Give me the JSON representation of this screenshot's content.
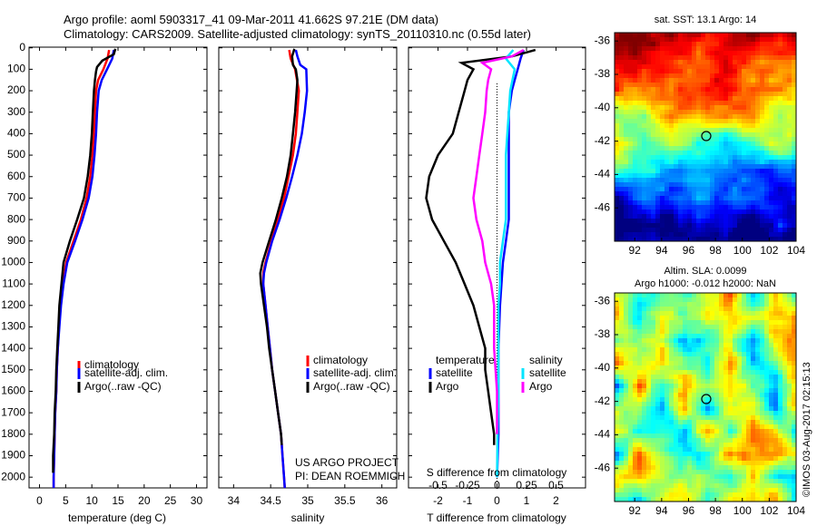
{
  "title": {
    "line1": "Argo profile: aoml 5903317_41 09-Mar-2011 41.662S 97.21E (DM data)",
    "line2": "Climatology: CARS2009. Satellite-adjusted climatology: synTS_20110310.nc (0.55d later)"
  },
  "colors": {
    "climatology": "#ff0000",
    "satellite_adj": "#0000ff",
    "argo": "#000000",
    "sat_T": "#0000ff",
    "argo_T": "#000000",
    "sat_S": "#00e5ff",
    "argo_S": "#ff00ff"
  },
  "depth_ticks": [
    "0",
    "100",
    "200",
    "300",
    "400",
    "500",
    "600",
    "700",
    "800",
    "900",
    "1000",
    "1100",
    "1200",
    "1300",
    "1400",
    "1500",
    "1600",
    "1700",
    "1800",
    "1900",
    "2000"
  ],
  "chart_data": [
    {
      "type": "line",
      "name": "temperature",
      "xlabel": "temperature (deg C)",
      "ylabel": "depth (dbar)",
      "xlim": [
        -2,
        32
      ],
      "ylim": [
        2050,
        0
      ],
      "xticks": [
        "0",
        "5",
        "10",
        "15",
        "20",
        "25",
        "30"
      ],
      "legend": [
        "climatology",
        "satellite-adj. clim.",
        "Argo(..raw -QC)"
      ],
      "series": [
        {
          "name": "climatology",
          "color": "#ff0000",
          "depth": [
            10,
            50,
            100,
            150,
            200,
            300,
            400,
            500,
            600,
            700,
            800,
            900,
            1000,
            1100,
            1200,
            1300,
            1400,
            1500,
            1600,
            1700,
            1800,
            1900,
            2000,
            2050
          ],
          "values": [
            13.3,
            13.0,
            12.2,
            11.2,
            10.8,
            10.6,
            10.4,
            10.1,
            9.7,
            9.0,
            7.9,
            6.5,
            5.1,
            4.5,
            4.0,
            3.7,
            3.5,
            3.3,
            3.2,
            3.0,
            2.9,
            2.8,
            2.7,
            2.7
          ]
        },
        {
          "name": "satellite-adj. clim.",
          "color": "#0000ff",
          "depth": [
            10,
            50,
            100,
            150,
            200,
            300,
            400,
            500,
            600,
            700,
            800,
            900,
            1000,
            1100,
            1200,
            1300,
            1400,
            1500,
            1600,
            1700,
            1800,
            1900,
            2000,
            2050
          ],
          "values": [
            14.2,
            13.9,
            12.9,
            11.9,
            11.3,
            11.0,
            10.8,
            10.5,
            10.1,
            9.4,
            8.2,
            6.8,
            5.3,
            4.6,
            4.1,
            3.8,
            3.5,
            3.3,
            3.2,
            3.0,
            2.9,
            2.8,
            2.7,
            2.7
          ]
        },
        {
          "name": "Argo(..raw -QC)",
          "color": "#000000",
          "depth": [
            5,
            30,
            60,
            90,
            110,
            150,
            200,
            300,
            400,
            500,
            600,
            700,
            800,
            900,
            1000,
            1100,
            1200,
            1300,
            1400,
            1500,
            1600,
            1700,
            1800,
            1900,
            1980
          ],
          "values": [
            14.5,
            14.2,
            12.0,
            11.0,
            10.8,
            10.6,
            10.4,
            10.2,
            10.0,
            9.7,
            9.2,
            8.5,
            7.2,
            5.8,
            4.6,
            4.2,
            3.8,
            3.6,
            3.4,
            3.2,
            3.1,
            2.9,
            2.8,
            2.6,
            2.6
          ]
        }
      ]
    },
    {
      "type": "line",
      "name": "salinity",
      "xlabel": "salinity",
      "ylabel": "depth (dbar)",
      "xlim": [
        33.8,
        36.2
      ],
      "ylim": [
        2050,
        0
      ],
      "xticks": [
        "34",
        "34.5",
        "35",
        "35.5",
        "36"
      ],
      "legend": [
        "climatology",
        "satellite-adj. clim.",
        "Argo(..raw -QC)"
      ],
      "series": [
        {
          "name": "climatology",
          "color": "#ff0000",
          "depth": [
            10,
            50,
            100,
            200,
            300,
            400,
            500,
            600,
            700,
            800,
            900,
            1000,
            1050,
            1100,
            1200,
            1300,
            1400,
            1500,
            1600,
            1700,
            1800,
            1900,
            2000,
            2050
          ],
          "values": [
            34.75,
            34.77,
            34.83,
            34.88,
            34.86,
            34.84,
            34.8,
            34.74,
            34.68,
            34.6,
            34.51,
            34.43,
            34.4,
            34.4,
            34.43,
            34.46,
            34.49,
            34.52,
            34.56,
            34.6,
            34.64,
            34.66,
            34.68,
            34.69
          ]
        },
        {
          "name": "satellite-adj. clim.",
          "color": "#0000ff",
          "depth": [
            10,
            40,
            80,
            100,
            200,
            300,
            400,
            500,
            600,
            700,
            800,
            900,
            1000,
            1050,
            1100,
            1200,
            1300,
            1400,
            1500,
            1600,
            1700,
            1800,
            1900,
            2000,
            2050
          ],
          "values": [
            34.84,
            34.86,
            34.9,
            34.98,
            34.99,
            34.96,
            34.92,
            34.86,
            34.79,
            34.71,
            34.62,
            34.52,
            34.44,
            34.41,
            34.4,
            34.43,
            34.46,
            34.49,
            34.52,
            34.56,
            34.6,
            34.64,
            34.66,
            34.68,
            34.69
          ]
        },
        {
          "name": "Argo(..raw -QC)",
          "color": "#000000",
          "depth": [
            5,
            40,
            80,
            100,
            150,
            200,
            300,
            400,
            500,
            600,
            700,
            800,
            900,
            1000,
            1050,
            1100,
            1200,
            1300,
            1400,
            1500,
            1600,
            1700,
            1800,
            1850
          ],
          "values": [
            34.82,
            34.79,
            34.8,
            34.84,
            34.86,
            34.85,
            34.83,
            34.8,
            34.77,
            34.72,
            34.65,
            34.57,
            34.48,
            34.39,
            34.36,
            34.37,
            34.41,
            34.45,
            34.48,
            34.52,
            34.56,
            34.6,
            34.64,
            34.65
          ]
        }
      ]
    },
    {
      "type": "line",
      "name": "difference from climatology",
      "xlabel": "T difference from climatology",
      "xlabel_top": "S difference from climatology",
      "xlim": [
        -3,
        3
      ],
      "ylim": [
        2050,
        0
      ],
      "xticks": [
        "-2",
        "-1",
        "0",
        "1",
        "2"
      ],
      "xticks_top": [
        "-0.5",
        "-0.25",
        "0",
        "0.25",
        "0.5"
      ],
      "legend": [
        "temperature",
        "salinity",
        "satellite",
        "satellite",
        "Argo",
        "Argo"
      ],
      "series": [
        {
          "name": "satellite T",
          "color": "#0000ff",
          "depth": [
            10,
            50,
            100,
            150,
            200,
            300,
            400,
            500,
            600,
            700,
            800,
            900,
            1000,
            1100,
            1200,
            1400,
            1600,
            1800,
            2000
          ],
          "values": [
            0.9,
            0.8,
            0.7,
            0.6,
            0.5,
            0.4,
            0.4,
            0.4,
            0.4,
            0.4,
            0.4,
            0.3,
            0.2,
            0.15,
            0.1,
            0.05,
            0.05,
            0.05,
            0.0
          ]
        },
        {
          "name": "Argo T",
          "color": "#000000",
          "depth": [
            10,
            40,
            70,
            100,
            150,
            200,
            300,
            400,
            500,
            600,
            700,
            800,
            900,
            1000,
            1100,
            1200,
            1300,
            1400,
            1500,
            1600,
            1700,
            1800,
            1850
          ],
          "values": [
            1.3,
            0.5,
            -1.2,
            -0.8,
            -1.0,
            -1.1,
            -1.3,
            -1.5,
            -2.0,
            -2.3,
            -2.4,
            -2.2,
            -1.8,
            -1.4,
            -1.1,
            -0.8,
            -0.6,
            -0.4,
            -0.4,
            -0.3,
            -0.2,
            -0.1,
            -0.1
          ]
        },
        {
          "name": "satellite S",
          "color": "#00e5ff",
          "depth": [
            10,
            50,
            100,
            200,
            300,
            400,
            500,
            600,
            700,
            800,
            900,
            1000,
            1100,
            1200,
            1400,
            1600,
            1800,
            2000
          ],
          "values": [
            0.55,
            0.3,
            0.6,
            0.45,
            0.4,
            0.35,
            0.3,
            0.3,
            0.3,
            0.3,
            0.2,
            0.1,
            0.1,
            0.05,
            0.05,
            0.05,
            0.02,
            0.0
          ]
        },
        {
          "name": "Argo S",
          "color": "#ff00ff",
          "depth": [
            10,
            40,
            70,
            100,
            150,
            200,
            300,
            400,
            500,
            600,
            700,
            800,
            900,
            1000,
            1100,
            1200,
            1400,
            1500,
            1600,
            1800
          ],
          "values": [
            0.9,
            0.5,
            -0.5,
            -0.2,
            -0.3,
            -0.35,
            -0.4,
            -0.5,
            -0.6,
            -0.7,
            -0.8,
            -0.7,
            -0.5,
            -0.4,
            -0.2,
            -0.1,
            -0.1,
            -0.05,
            0.0,
            0.0
          ]
        }
      ]
    },
    {
      "type": "heatmap",
      "name": "sat. SST",
      "title": "sat. SST: 13.1  Argo: 14",
      "xticks": [
        "92",
        "94",
        "96",
        "98",
        "100",
        "102",
        "104"
      ],
      "yticks": [
        "-36",
        "-38",
        "-40",
        "-42",
        "-44",
        "-46"
      ],
      "xlim": [
        90.5,
        104
      ],
      "ylim": [
        -48,
        -35.5
      ],
      "marker": {
        "lon": 97.21,
        "lat": -41.66
      }
    },
    {
      "type": "heatmap",
      "name": "Altim. SLA",
      "title1": "Altim. SLA: 0.0099",
      "title2": "Argo h1000: -0.012 h2000: NaN",
      "xticks": [
        "92",
        "94",
        "96",
        "98",
        "100",
        "102",
        "104"
      ],
      "yticks": [
        "-36",
        "-38",
        "-40",
        "-42",
        "-44",
        "-46"
      ],
      "xlim": [
        90.5,
        104
      ],
      "ylim": [
        -48,
        -35.5
      ],
      "marker": {
        "lon": 97.21,
        "lat": -41.66
      }
    }
  ],
  "legend_labels": {
    "climatology": "climatology",
    "satellite": "satellite-adj. clim.",
    "argo": "Argo(..raw -QC)",
    "temperature": "temperature",
    "salinity": "salinity",
    "sat": "satellite",
    "arg": "Argo"
  },
  "credit": {
    "line1": "US ARGO PROJECT",
    "line2": "PI: DEAN ROEMMICH"
  },
  "imos": "©IMOS 03-Aug-2017 02:15:13"
}
